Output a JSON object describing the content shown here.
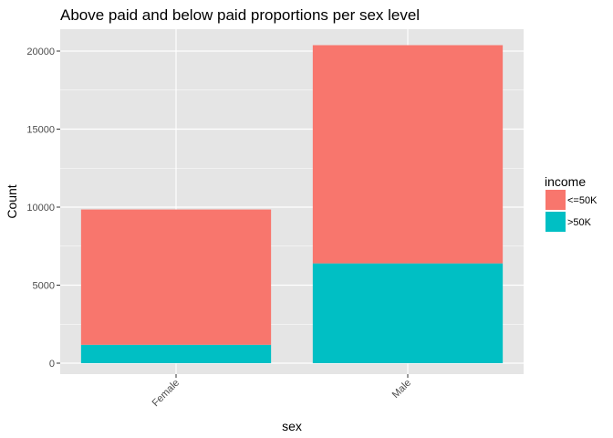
{
  "chart_data": {
    "type": "bar",
    "stacked": true,
    "title": "Above paid and below paid proportions per sex level",
    "xlabel": "sex",
    "ylabel": "Count",
    "categories": [
      "Female",
      "Male"
    ],
    "series": [
      {
        "name": "<=50K",
        "color": "#F8766D",
        "values": [
          8670,
          13984
        ]
      },
      {
        "name": ">50K",
        "color": "#00BFC4",
        "values": [
          1179,
          6396
        ]
      }
    ],
    "ylim": [
      0,
      21000
    ],
    "yticks": [
      0,
      5000,
      10000,
      15000,
      20000
    ],
    "ytick_labels": [
      "0",
      "5000",
      "10000",
      "15000",
      "20000"
    ],
    "grid": true,
    "legend": {
      "title": "income",
      "position": "right"
    },
    "panel_background": "#E5E5E5",
    "grid_color": "#FFFFFF"
  }
}
